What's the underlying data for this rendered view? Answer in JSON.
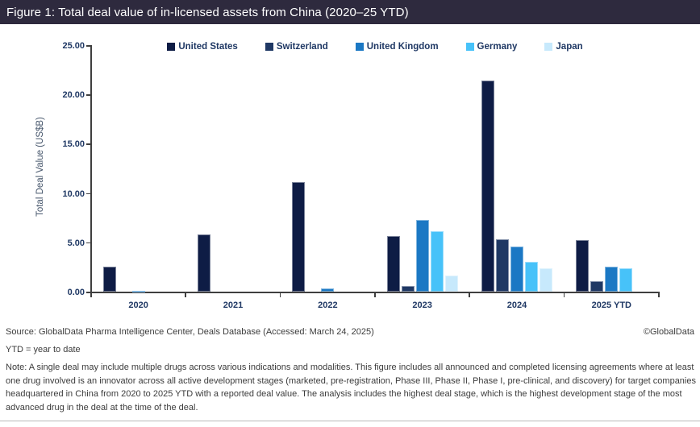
{
  "header": {
    "title": "Figure 1: Total deal value of in-licensed assets from China (2020–25 YTD)",
    "bar_color": "#2e2a3e"
  },
  "chart_data": {
    "type": "bar",
    "categories": [
      "2020",
      "2021",
      "2022",
      "2023",
      "2024",
      "2025 YTD"
    ],
    "series": [
      {
        "name": "United States",
        "color": "#0e1c45",
        "values": [
          2.5,
          5.8,
          11.1,
          5.6,
          21.4,
          5.2
        ]
      },
      {
        "name": "Switzerland",
        "color": "#1f3864",
        "values": [
          0,
          0,
          0,
          0.6,
          5.3,
          1.1
        ]
      },
      {
        "name": "United Kingdom",
        "color": "#1b78c4",
        "values": [
          0.1,
          0,
          0.3,
          7.3,
          4.6,
          2.5
        ]
      },
      {
        "name": "Germany",
        "color": "#47c2f9",
        "values": [
          0,
          0,
          0,
          6.1,
          3.0,
          2.4
        ]
      },
      {
        "name": "Japan",
        "color": "#c7e9fc",
        "values": [
          0,
          0,
          0,
          1.6,
          2.4,
          0
        ]
      }
    ],
    "ylabel": "Total Deal Value (US$B)",
    "ylim": [
      0,
      25
    ],
    "ytick_labels": [
      "0.00",
      "5.00",
      "10.00",
      "15.00",
      "20.00",
      "25.00"
    ],
    "legend_position": "top",
    "grid": false
  },
  "footer": {
    "source": "Source: GlobalData Pharma Intelligence Center, Deals Database (Accessed: March 24, 2025)",
    "copyright": "©GlobalData",
    "ytd_note": "YTD = year to date",
    "note": "Note: A single deal may include multiple drugs across various indications and modalities. This figure includes all announced and completed licensing agreements where at least one drug involved is an innovator across all active development stages (marketed, pre-registration, Phase III, Phase II, Phase I, pre-clinical, and discovery) for target companies headquartered in China from 2020 to 2025 YTD with a reported deal value. The analysis includes the highest deal stage, which is the highest development stage of the most advanced drug in the deal at the time of the deal."
  }
}
